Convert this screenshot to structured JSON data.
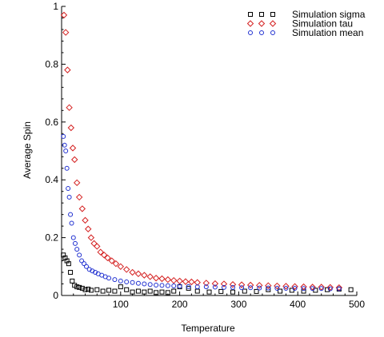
{
  "chart_data": {
    "type": "scatter",
    "title": "",
    "xlabel": "Temperature",
    "ylabel": "Average Spin",
    "xlim": [
      0,
      500
    ],
    "ylim": [
      0,
      1
    ],
    "x_ticks": [
      100,
      200,
      300,
      400,
      500
    ],
    "y_ticks": [
      0,
      0.2,
      0.4,
      0.6,
      0.8,
      1
    ],
    "x_tick_labels": [
      "100",
      "200",
      "300",
      "400",
      "500"
    ],
    "y_tick_labels": [
      "0",
      "0.2",
      "0.4",
      "0.6",
      "0.8",
      "1"
    ],
    "grid": false,
    "legend_position": "top-right",
    "series": [
      {
        "name": "Simulation sigma",
        "marker": "square",
        "color": "#000000",
        "x": [
          3,
          6,
          9,
          12,
          15,
          18,
          22,
          26,
          30,
          35,
          40,
          45,
          50,
          60,
          70,
          80,
          90,
          100,
          110,
          120,
          130,
          140,
          150,
          160,
          170,
          180,
          190,
          200,
          215,
          230,
          250,
          270,
          290,
          310,
          330,
          350,
          370,
          390,
          410,
          430,
          450,
          470,
          490
        ],
        "y": [
          0.14,
          0.13,
          0.12,
          0.11,
          0.08,
          0.05,
          0.035,
          0.03,
          0.028,
          0.025,
          0.02,
          0.022,
          0.018,
          0.02,
          0.015,
          0.018,
          0.015,
          0.03,
          0.02,
          0.012,
          0.015,
          0.012,
          0.015,
          0.01,
          0.012,
          0.01,
          0.015,
          0.03,
          0.025,
          0.015,
          0.012,
          0.014,
          0.012,
          0.015,
          0.014,
          0.02,
          0.015,
          0.018,
          0.015,
          0.018,
          0.02,
          0.022,
          0.02
        ]
      },
      {
        "name": "Simulation tau",
        "marker": "diamond",
        "color": "#d42020",
        "x": [
          4,
          7,
          10,
          13,
          16,
          19,
          22,
          26,
          30,
          35,
          40,
          45,
          50,
          55,
          60,
          66,
          72,
          78,
          85,
          92,
          100,
          110,
          120,
          130,
          140,
          150,
          160,
          170,
          180,
          190,
          200,
          210,
          220,
          230,
          245,
          260,
          275,
          290,
          305,
          320,
          335,
          350,
          365,
          380,
          395,
          410,
          425,
          440,
          455,
          470
        ],
        "y": [
          0.97,
          0.91,
          0.78,
          0.65,
          0.58,
          0.51,
          0.47,
          0.39,
          0.34,
          0.3,
          0.26,
          0.23,
          0.2,
          0.18,
          0.17,
          0.15,
          0.14,
          0.13,
          0.12,
          0.11,
          0.1,
          0.09,
          0.08,
          0.075,
          0.07,
          0.065,
          0.06,
          0.058,
          0.055,
          0.052,
          0.05,
          0.048,
          0.047,
          0.045,
          0.043,
          0.041,
          0.04,
          0.038,
          0.037,
          0.036,
          0.035,
          0.034,
          0.033,
          0.032,
          0.031,
          0.03,
          0.029,
          0.029,
          0.028,
          0.027
        ]
      },
      {
        "name": "Simulation mean",
        "marker": "circle",
        "color": "#1f2fd0",
        "x": [
          3,
          5,
          7,
          9,
          11,
          13,
          15,
          17,
          20,
          23,
          26,
          30,
          34,
          38,
          42,
          47,
          52,
          57,
          62,
          68,
          74,
          80,
          90,
          100,
          110,
          120,
          130,
          140,
          150,
          160,
          170,
          180,
          190,
          200,
          215,
          230,
          245,
          260,
          275,
          290,
          305,
          320,
          335,
          350,
          365,
          380,
          395,
          410,
          425,
          440,
          455,
          470
        ],
        "y": [
          0.55,
          0.52,
          0.5,
          0.44,
          0.37,
          0.34,
          0.28,
          0.25,
          0.2,
          0.18,
          0.16,
          0.14,
          0.12,
          0.11,
          0.1,
          0.09,
          0.085,
          0.08,
          0.075,
          0.07,
          0.065,
          0.06,
          0.055,
          0.05,
          0.047,
          0.045,
          0.042,
          0.04,
          0.038,
          0.036,
          0.035,
          0.034,
          0.033,
          0.032,
          0.031,
          0.03,
          0.03,
          0.029,
          0.028,
          0.028,
          0.027,
          0.027,
          0.026,
          0.026,
          0.025,
          0.025,
          0.025,
          0.024,
          0.024,
          0.024,
          0.023,
          0.023
        ]
      }
    ]
  }
}
